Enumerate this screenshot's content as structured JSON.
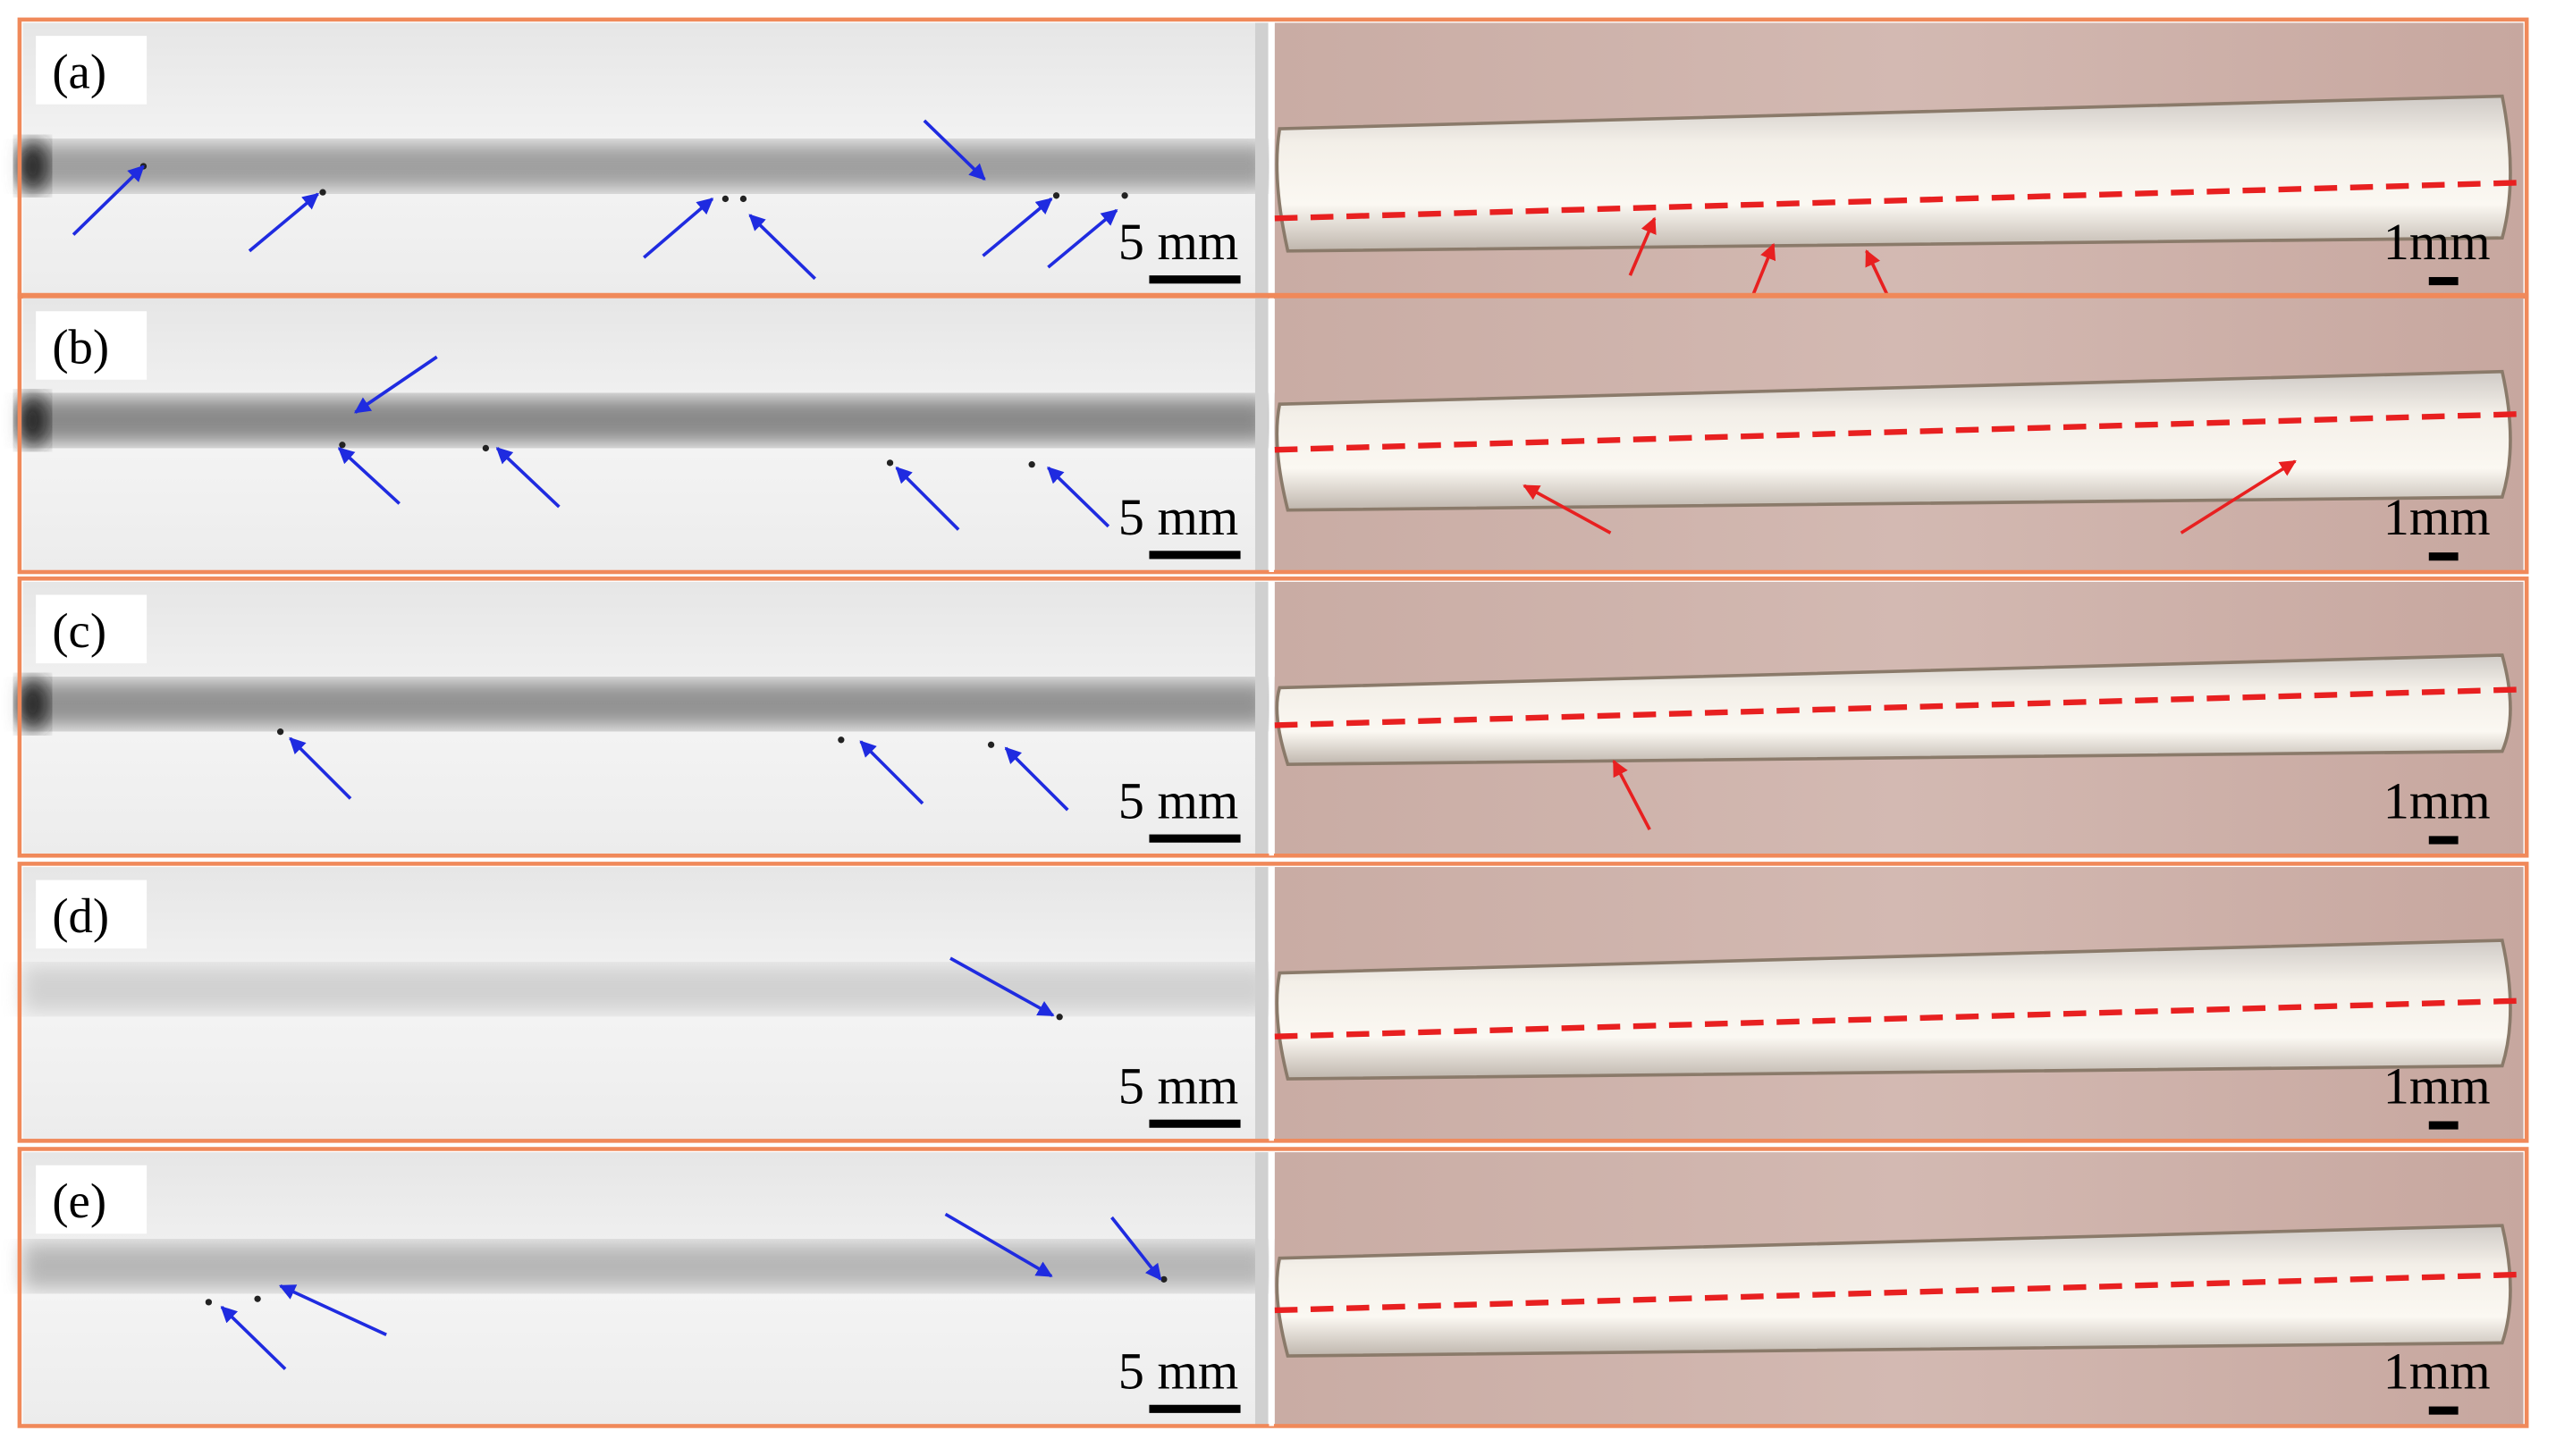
{
  "panels": [
    {
      "label": "(a)",
      "xray_scale": "5 mm",
      "section_scale": "1mm"
    },
    {
      "label": "(b)",
      "xray_scale": "5 mm",
      "section_scale": "1mm"
    },
    {
      "label": "(c)",
      "xray_scale": "5 mm",
      "section_scale": "1mm"
    },
    {
      "label": "(d)",
      "xray_scale": "5 mm",
      "section_scale": "1mm"
    },
    {
      "label": "(e)",
      "xray_scale": "5 mm",
      "section_scale": "1mm"
    }
  ]
}
